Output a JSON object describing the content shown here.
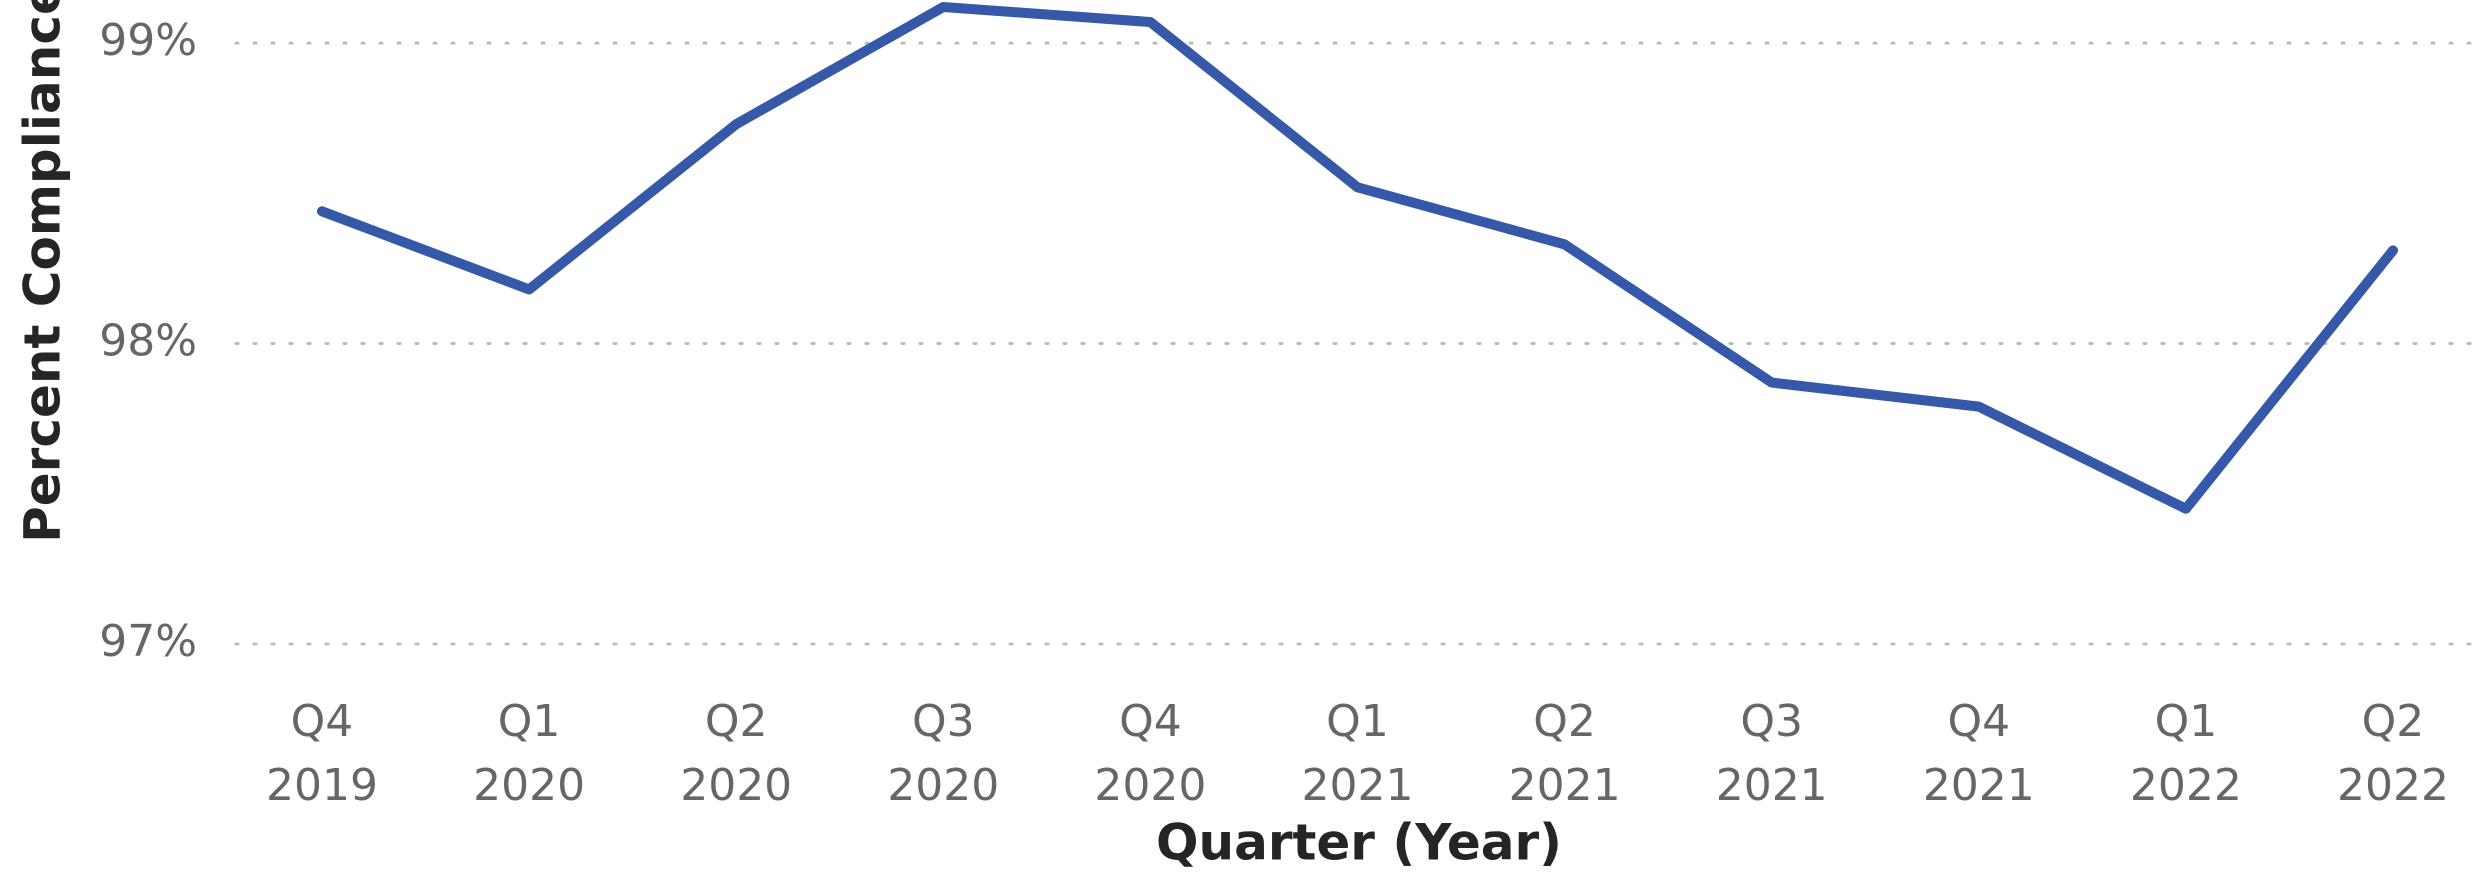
{
  "chart_data": {
    "type": "line",
    "y_axis_label": "Percent Compliance",
    "x_axis_label": "Quarter (Year)",
    "categories": [
      "Q4 2019",
      "Q1 2020",
      "Q2 2020",
      "Q3 2020",
      "Q4 2020",
      "Q1 2021",
      "Q2 2021",
      "Q3 2021",
      "Q4 2021",
      "Q1 2022",
      "Q2 2022"
    ],
    "values": [
      98.44,
      98.18,
      98.73,
      99.12,
      99.07,
      98.52,
      98.33,
      97.87,
      97.79,
      97.45,
      98.31
    ],
    "color": "#3558a8",
    "ylim": [
      97,
      99.14
    ],
    "yticks": [
      {
        "value": 97,
        "label": "97%"
      },
      {
        "value": 98,
        "label": "98%"
      },
      {
        "value": 99,
        "label": "99%"
      }
    ],
    "grid": true
  }
}
